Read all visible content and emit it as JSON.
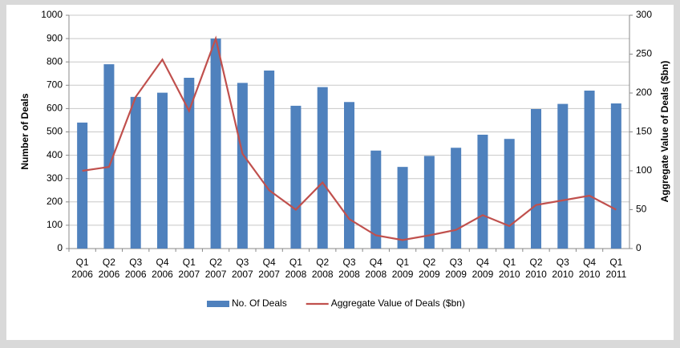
{
  "chart_data": {
    "type": "bar-line",
    "categories": [
      "Q1 2006",
      "Q2 2006",
      "Q3 2006",
      "Q4 2006",
      "Q1 2007",
      "Q2 2007",
      "Q3 2007",
      "Q4 2007",
      "Q1 2008",
      "Q2 2008",
      "Q3 2008",
      "Q4 2008",
      "Q1 2009",
      "Q2 2009",
      "Q3 2009",
      "Q4 2009",
      "Q1 2010",
      "Q2 2010",
      "Q3 2010",
      "Q4 2010",
      "Q1 2011"
    ],
    "series": [
      {
        "name": "No. Of Deals",
        "type": "bar",
        "color": "#4f81bd",
        "values": [
          540,
          790,
          650,
          668,
          732,
          900,
          710,
          763,
          612,
          692,
          628,
          420,
          350,
          397,
          432,
          488,
          470,
          598,
          620,
          677,
          622
        ]
      },
      {
        "name": "Aggregate Value of Deals ($bn)",
        "type": "line",
        "axis": "y2",
        "color": "#c0504d",
        "values": [
          100,
          105,
          195,
          243,
          177,
          270,
          122,
          75,
          50,
          85,
          38,
          17,
          11,
          17,
          24,
          43,
          29,
          56,
          62,
          68,
          50
        ]
      }
    ],
    "ylabel": "Number of Deals",
    "y2label": "Aggregate Value of Deals ($bn)",
    "ylim": [
      0,
      1000
    ],
    "yticks": [
      0,
      100,
      200,
      300,
      400,
      500,
      600,
      700,
      800,
      900,
      1000
    ],
    "y2lim": [
      0,
      300
    ],
    "y2ticks": [
      0,
      50,
      100,
      150,
      200,
      250,
      300
    ],
    "grid": true,
    "legend": "bottom"
  }
}
